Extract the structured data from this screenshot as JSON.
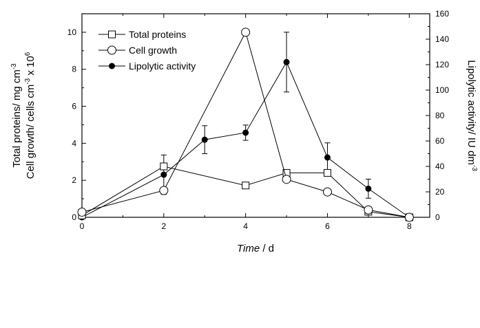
{
  "chart_data": {
    "type": "line",
    "x_axis": {
      "label_italic": "Time",
      "label_rest": " / d",
      "range": [
        0,
        8.5
      ],
      "ticks": [
        0,
        2,
        4,
        6,
        8
      ],
      "tick_labels": [
        "0",
        "2",
        "4",
        "6",
        "8"
      ]
    },
    "y_left": {
      "label_line1": "Total proteins/ mg cm",
      "label_line1_sup": "-3",
      "label_line2": "Cell growth/ cells cm",
      "label_line2_sup1": "-3",
      "label_line2_mid": " x 10",
      "label_line2_sup2": "6",
      "range": [
        0,
        11
      ],
      "ticks": [
        0,
        2,
        4,
        6,
        8,
        10
      ],
      "tick_labels": [
        "0",
        "2",
        "4",
        "6",
        "8",
        "10"
      ]
    },
    "y_right": {
      "label": "Lipolytic activity/ IU dm",
      "label_sup": "-3",
      "range": [
        0,
        160
      ],
      "ticks": [
        0,
        20,
        40,
        60,
        80,
        100,
        120,
        140,
        160
      ],
      "tick_labels": [
        "0",
        "20",
        "40",
        "60",
        "80",
        "100",
        "120",
        "140",
        "160"
      ]
    },
    "series": [
      {
        "name": "Total proteins",
        "marker": "square-open",
        "axis": "left",
        "x": [
          0,
          2,
          4,
          5,
          6,
          7,
          8
        ],
        "y": [
          0.1,
          2.75,
          1.72,
          2.4,
          2.4,
          0.3,
          0.0
        ]
      },
      {
        "name": "Cell growth",
        "marker": "circle-open",
        "axis": "left",
        "x": [
          0,
          2,
          4,
          5,
          6,
          7,
          8
        ],
        "y": [
          0.28,
          1.45,
          10.0,
          2.05,
          1.37,
          0.4,
          0.0
        ]
      },
      {
        "name": "Lipolytic activity",
        "marker": "circle-filled",
        "axis": "right",
        "x": [
          0,
          2,
          3,
          4,
          5,
          6,
          7,
          8
        ],
        "y": [
          0,
          33.5,
          61,
          66.5,
          122,
          47,
          22.5,
          0
        ],
        "err": [
          0,
          15.5,
          11,
          6,
          23.5,
          11.5,
          7.5,
          0
        ]
      }
    ],
    "legend_position": "top-left",
    "grid": false
  }
}
